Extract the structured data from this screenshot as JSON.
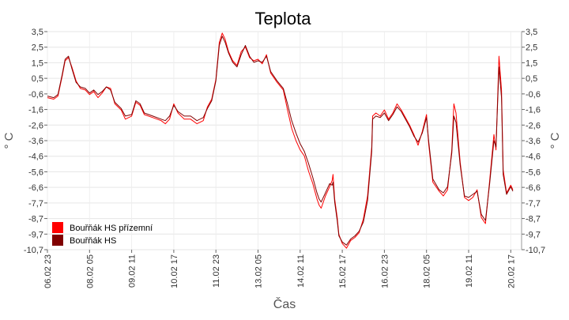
{
  "chart_data": {
    "type": "line",
    "title": "Teplota",
    "xlabel": "Čas",
    "ylabel": "° C",
    "ylim": [
      -10.7,
      3.5
    ],
    "y_ticks": [
      "3,5",
      "2,5",
      "1,5",
      "0,5",
      "-0,6",
      "-1,6",
      "-2,6",
      "-3,6",
      "-4,6",
      "-5,6",
      "-6,6",
      "-7,7",
      "-8,7",
      "-9,7",
      "-10,7"
    ],
    "x_ticks": [
      "06.02 23",
      "08.02 05",
      "09.02 11",
      "10.02 17",
      "11.02 23",
      "13.02 05",
      "14.02 11",
      "15.02 17",
      "16.02 23",
      "18.02 05",
      "19.02 11",
      "20.02 17"
    ],
    "x_range_ticks": [
      0,
      12
    ],
    "grid": true,
    "legend_position": "bottom-left",
    "series": [
      {
        "name": "Bouřňák HS přízemní",
        "color": "#ff0000",
        "points": [
          [
            0.0,
            -0.8
          ],
          [
            0.15,
            -0.9
          ],
          [
            0.25,
            -0.7
          ],
          [
            0.35,
            0.6
          ],
          [
            0.42,
            1.6
          ],
          [
            0.5,
            1.8
          ],
          [
            0.58,
            1.2
          ],
          [
            0.68,
            0.3
          ],
          [
            0.78,
            -0.2
          ],
          [
            0.9,
            -0.3
          ],
          [
            1.0,
            -0.6
          ],
          [
            1.1,
            -0.4
          ],
          [
            1.2,
            -0.8
          ],
          [
            1.3,
            -0.5
          ],
          [
            1.4,
            -0.1
          ],
          [
            1.5,
            -0.2
          ],
          [
            1.6,
            -1.2
          ],
          [
            1.75,
            -1.6
          ],
          [
            1.85,
            -2.2
          ],
          [
            2.0,
            -2.0
          ],
          [
            2.1,
            -1.1
          ],
          [
            2.2,
            -1.3
          ],
          [
            2.3,
            -1.9
          ],
          [
            2.5,
            -2.1
          ],
          [
            2.7,
            -2.3
          ],
          [
            2.8,
            -2.5
          ],
          [
            2.9,
            -2.2
          ],
          [
            3.0,
            -1.2
          ],
          [
            3.1,
            -1.8
          ],
          [
            3.25,
            -2.2
          ],
          [
            3.4,
            -2.2
          ],
          [
            3.55,
            -2.5
          ],
          [
            3.7,
            -2.3
          ],
          [
            3.8,
            -1.4
          ],
          [
            3.9,
            -0.9
          ],
          [
            4.0,
            0.4
          ],
          [
            4.08,
            2.8
          ],
          [
            4.15,
            3.4
          ],
          [
            4.22,
            3.0
          ],
          [
            4.3,
            2.2
          ],
          [
            4.4,
            1.6
          ],
          [
            4.5,
            1.3
          ],
          [
            4.6,
            2.2
          ],
          [
            4.7,
            2.5
          ],
          [
            4.8,
            1.8
          ],
          [
            4.9,
            1.6
          ],
          [
            5.0,
            1.7
          ],
          [
            5.1,
            1.4
          ],
          [
            5.2,
            2.0
          ],
          [
            5.3,
            0.8
          ],
          [
            5.45,
            0.2
          ],
          [
            5.6,
            -0.3
          ],
          [
            5.7,
            -1.6
          ],
          [
            5.8,
            -2.8
          ],
          [
            5.9,
            -3.6
          ],
          [
            6.0,
            -4.2
          ],
          [
            6.1,
            -4.6
          ],
          [
            6.2,
            -5.6
          ],
          [
            6.3,
            -6.4
          ],
          [
            6.4,
            -7.4
          ],
          [
            6.45,
            -7.8
          ],
          [
            6.5,
            -8.0
          ],
          [
            6.6,
            -7.2
          ],
          [
            6.7,
            -6.6
          ],
          [
            6.76,
            -6.2
          ],
          [
            6.78,
            -5.8
          ],
          [
            6.82,
            -7.4
          ],
          [
            6.88,
            -8.6
          ],
          [
            6.92,
            -9.7
          ],
          [
            7.0,
            -10.3
          ],
          [
            7.1,
            -10.6
          ],
          [
            7.2,
            -10.1
          ],
          [
            7.3,
            -9.9
          ],
          [
            7.4,
            -9.6
          ],
          [
            7.5,
            -8.7
          ],
          [
            7.6,
            -7.2
          ],
          [
            7.7,
            -4.0
          ],
          [
            7.72,
            -2.0
          ],
          [
            7.8,
            -1.8
          ],
          [
            7.9,
            -2.0
          ],
          [
            8.0,
            -1.6
          ],
          [
            8.1,
            -2.2
          ],
          [
            8.2,
            -1.8
          ],
          [
            8.3,
            -1.2
          ],
          [
            8.4,
            -1.6
          ],
          [
            8.5,
            -2.1
          ],
          [
            8.6,
            -2.6
          ],
          [
            8.7,
            -3.2
          ],
          [
            8.8,
            -3.9
          ],
          [
            8.9,
            -3.0
          ],
          [
            9.0,
            -1.9
          ],
          [
            9.05,
            -3.8
          ],
          [
            9.15,
            -6.3
          ],
          [
            9.3,
            -6.9
          ],
          [
            9.4,
            -7.2
          ],
          [
            9.5,
            -6.8
          ],
          [
            9.6,
            -4.2
          ],
          [
            9.65,
            -1.2
          ],
          [
            9.7,
            -1.8
          ],
          [
            9.8,
            -5.0
          ],
          [
            9.9,
            -7.3
          ],
          [
            10.0,
            -7.5
          ],
          [
            10.1,
            -7.3
          ],
          [
            10.2,
            -6.8
          ],
          [
            10.3,
            -8.6
          ],
          [
            10.4,
            -9.0
          ],
          [
            10.5,
            -6.2
          ],
          [
            10.6,
            -3.2
          ],
          [
            10.65,
            -4.2
          ],
          [
            10.72,
            1.9
          ],
          [
            10.78,
            -0.3
          ],
          [
            10.82,
            -5.5
          ],
          [
            10.9,
            -7.0
          ],
          [
            11.0,
            -6.5
          ],
          [
            11.05,
            -6.8
          ]
        ]
      },
      {
        "name": "Bouřňák HS",
        "color": "#800000",
        "points": [
          [
            0.0,
            -0.7
          ],
          [
            0.15,
            -0.8
          ],
          [
            0.25,
            -0.6
          ],
          [
            0.35,
            0.7
          ],
          [
            0.42,
            1.7
          ],
          [
            0.5,
            1.9
          ],
          [
            0.58,
            1.1
          ],
          [
            0.68,
            0.2
          ],
          [
            0.78,
            -0.1
          ],
          [
            0.9,
            -0.2
          ],
          [
            1.0,
            -0.5
          ],
          [
            1.1,
            -0.3
          ],
          [
            1.2,
            -0.6
          ],
          [
            1.3,
            -0.4
          ],
          [
            1.4,
            -0.1
          ],
          [
            1.5,
            -0.3
          ],
          [
            1.6,
            -1.1
          ],
          [
            1.75,
            -1.5
          ],
          [
            1.85,
            -2.0
          ],
          [
            2.0,
            -1.9
          ],
          [
            2.1,
            -1.0
          ],
          [
            2.2,
            -1.2
          ],
          [
            2.3,
            -1.8
          ],
          [
            2.5,
            -2.0
          ],
          [
            2.7,
            -2.2
          ],
          [
            2.8,
            -2.3
          ],
          [
            2.9,
            -2.0
          ],
          [
            3.0,
            -1.3
          ],
          [
            3.1,
            -1.7
          ],
          [
            3.25,
            -2.0
          ],
          [
            3.4,
            -2.0
          ],
          [
            3.55,
            -2.3
          ],
          [
            3.7,
            -2.1
          ],
          [
            3.8,
            -1.5
          ],
          [
            3.9,
            -1.0
          ],
          [
            4.0,
            0.3
          ],
          [
            4.08,
            2.6
          ],
          [
            4.15,
            3.2
          ],
          [
            4.22,
            2.8
          ],
          [
            4.3,
            2.1
          ],
          [
            4.4,
            1.5
          ],
          [
            4.5,
            1.2
          ],
          [
            4.6,
            2.0
          ],
          [
            4.7,
            2.6
          ],
          [
            4.8,
            1.9
          ],
          [
            4.9,
            1.5
          ],
          [
            5.0,
            1.6
          ],
          [
            5.1,
            1.5
          ],
          [
            5.2,
            1.9
          ],
          [
            5.3,
            0.9
          ],
          [
            5.45,
            0.3
          ],
          [
            5.6,
            -0.2
          ],
          [
            5.7,
            -1.2
          ],
          [
            5.8,
            -2.3
          ],
          [
            5.9,
            -3.1
          ],
          [
            6.0,
            -3.8
          ],
          [
            6.1,
            -4.3
          ],
          [
            6.2,
            -5.1
          ],
          [
            6.3,
            -6.0
          ],
          [
            6.4,
            -7.0
          ],
          [
            6.45,
            -7.4
          ],
          [
            6.5,
            -7.6
          ],
          [
            6.6,
            -7.0
          ],
          [
            6.7,
            -6.4
          ],
          [
            6.76,
            -6.5
          ],
          [
            6.78,
            -6.3
          ],
          [
            6.82,
            -7.6
          ],
          [
            6.88,
            -8.8
          ],
          [
            6.92,
            -9.8
          ],
          [
            7.0,
            -10.2
          ],
          [
            7.1,
            -10.4
          ],
          [
            7.2,
            -10.0
          ],
          [
            7.3,
            -9.8
          ],
          [
            7.4,
            -9.5
          ],
          [
            7.5,
            -8.9
          ],
          [
            7.6,
            -7.5
          ],
          [
            7.7,
            -4.3
          ],
          [
            7.72,
            -2.2
          ],
          [
            7.8,
            -2.0
          ],
          [
            7.9,
            -2.1
          ],
          [
            8.0,
            -1.8
          ],
          [
            8.1,
            -2.3
          ],
          [
            8.2,
            -1.9
          ],
          [
            8.3,
            -1.4
          ],
          [
            8.4,
            -1.7
          ],
          [
            8.5,
            -2.2
          ],
          [
            8.6,
            -2.7
          ],
          [
            8.7,
            -3.3
          ],
          [
            8.8,
            -3.7
          ],
          [
            8.9,
            -3.1
          ],
          [
            9.0,
            -2.1
          ],
          [
            9.05,
            -3.6
          ],
          [
            9.15,
            -6.1
          ],
          [
            9.3,
            -6.8
          ],
          [
            9.4,
            -7.0
          ],
          [
            9.5,
            -6.6
          ],
          [
            9.6,
            -4.4
          ],
          [
            9.65,
            -2.0
          ],
          [
            9.7,
            -2.4
          ],
          [
            9.8,
            -5.2
          ],
          [
            9.9,
            -7.2
          ],
          [
            10.0,
            -7.3
          ],
          [
            10.1,
            -7.1
          ],
          [
            10.2,
            -6.9
          ],
          [
            10.3,
            -8.4
          ],
          [
            10.4,
            -8.8
          ],
          [
            10.5,
            -6.4
          ],
          [
            10.6,
            -3.6
          ],
          [
            10.65,
            -4.0
          ],
          [
            10.72,
            1.2
          ],
          [
            10.78,
            -0.8
          ],
          [
            10.82,
            -5.8
          ],
          [
            10.9,
            -7.1
          ],
          [
            11.0,
            -6.6
          ],
          [
            11.05,
            -6.9
          ]
        ]
      }
    ]
  }
}
